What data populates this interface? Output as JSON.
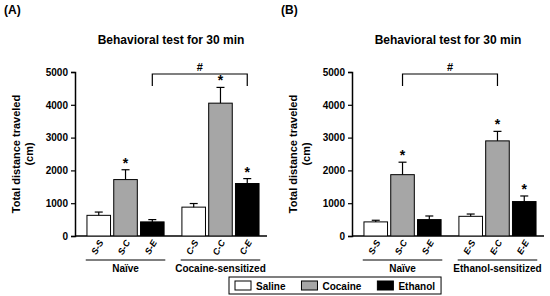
{
  "chart_data": [
    {
      "type": "bar",
      "panel": "(A)",
      "title": "Behavioral test for 30 min",
      "y_label": [
        "Total distance traveled",
        "(cm)"
      ],
      "categories": [
        "Naïve",
        "Cocaine-sensitized"
      ],
      "series": [
        {
          "name": "Saline",
          "color": "#ffffff",
          "values": [
            630,
            880
          ],
          "errors": [
            100,
            110
          ],
          "bar_labels": [
            "S-S",
            "C-S"
          ]
        },
        {
          "name": "Cocaine",
          "color": "#a6a6a6",
          "values": [
            1720,
            4050
          ],
          "errors": [
            300,
            480
          ],
          "bar_labels": [
            "S-C",
            "C-C"
          ],
          "significance": [
            "*",
            "*"
          ]
        },
        {
          "name": "Ethanol",
          "color": "#000000",
          "values": [
            430,
            1600
          ],
          "errors": [
            70,
            150
          ],
          "bar_labels": [
            "S-E",
            "C-E"
          ],
          "significance": [
            null,
            "*"
          ]
        }
      ],
      "ylim": [
        0,
        5000
      ],
      "yticks": [
        0,
        1000,
        2000,
        3000,
        4000,
        5000
      ],
      "legend": "bottom",
      "comparisons": [
        {
          "between": [
            "S-E",
            "C-E"
          ],
          "label": "#"
        }
      ]
    },
    {
      "type": "bar",
      "panel": "(B)",
      "title": "Behavioral test for 30 min",
      "y_label": [
        "Total distance traveled",
        "(cm)"
      ],
      "categories": [
        "Naïve",
        "Ethanol-sensitized"
      ],
      "series": [
        {
          "color": "#ffffff",
          "values": [
            430,
            600
          ],
          "errors": [
            50,
            70
          ],
          "bar_labels": [
            "S-S",
            "E-S"
          ]
        },
        {
          "color": "#a6a6a6",
          "values": [
            1870,
            2900
          ],
          "errors": [
            380,
            290
          ],
          "bar_labels": [
            "S-C",
            "E-C"
          ],
          "significance": [
            "*",
            "*"
          ]
        },
        {
          "color": "#000000",
          "values": [
            500,
            1050
          ],
          "errors": [
            110,
            170
          ],
          "bar_labels": [
            "S-E",
            "E-E"
          ],
          "significance": [
            null,
            "*"
          ]
        }
      ],
      "ylim": [
        0,
        5000
      ],
      "yticks": [
        0,
        1000,
        2000,
        3000,
        4000,
        5000
      ],
      "comparisons": [
        {
          "between": [
            "S-C",
            "E-C"
          ],
          "label": "#"
        }
      ]
    }
  ]
}
